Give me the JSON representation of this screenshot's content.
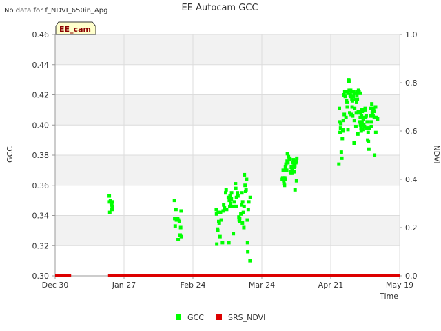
{
  "status_message": "No data for f_NDVI_650in_Apg",
  "site_badge": "EE_cam",
  "chart_data": {
    "type": "scatter",
    "title": "EE Autocam GCC",
    "xlabel": "Time",
    "ylabel_left": "GCC",
    "ylabel_right": "NDVI",
    "x_range_days": [
      0,
      140
    ],
    "ylim_left": [
      0.3,
      0.46
    ],
    "ylim_right": [
      0.0,
      1.0
    ],
    "grid": true,
    "legend_position": "bottom-center",
    "x_ticks": [
      {
        "day": 0,
        "label": "Dec 30"
      },
      {
        "day": 28,
        "label": "Jan 27"
      },
      {
        "day": 56,
        "label": "Feb 24"
      },
      {
        "day": 84,
        "label": "Mar 24"
      },
      {
        "day": 112,
        "label": "Apr 21"
      },
      {
        "day": 140,
        "label": "May 19"
      }
    ],
    "y_ticks_left": [
      {
        "value": 0.3,
        "label": "0.30"
      },
      {
        "value": 0.32,
        "label": "0.32"
      },
      {
        "value": 0.34,
        "label": "0.34"
      },
      {
        "value": 0.36,
        "label": "0.36"
      },
      {
        "value": 0.38,
        "label": "0.38"
      },
      {
        "value": 0.4,
        "label": "0.40"
      },
      {
        "value": 0.42,
        "label": "0.42"
      },
      {
        "value": 0.44,
        "label": "0.44"
      },
      {
        "value": 0.46,
        "label": "0.46"
      }
    ],
    "y_ticks_right": [
      {
        "value": 0.0,
        "label": "0.0"
      },
      {
        "value": 0.2,
        "label": "0.2"
      },
      {
        "value": 0.4,
        "label": "0.4"
      },
      {
        "value": 0.6,
        "label": "0.6"
      },
      {
        "value": 0.8,
        "label": "0.8"
      },
      {
        "value": 1.0,
        "label": "1.0"
      }
    ],
    "series": [
      {
        "name": "GCC",
        "axis": "left",
        "color": "#00ff00",
        "marker": "square",
        "points": [
          [
            22,
            0.353
          ],
          [
            22.1,
            0.349
          ],
          [
            22.2,
            0.342
          ],
          [
            22.5,
            0.35
          ],
          [
            22.8,
            0.348
          ],
          [
            23,
            0.347
          ],
          [
            23.1,
            0.344
          ],
          [
            23.2,
            0.346
          ],
          [
            23.3,
            0.349
          ],
          [
            48.5,
            0.35
          ],
          [
            48.6,
            0.338
          ],
          [
            48.8,
            0.333
          ],
          [
            49.1,
            0.344
          ],
          [
            49.3,
            0.337
          ],
          [
            49.8,
            0.338
          ],
          [
            50,
            0.324
          ],
          [
            50.1,
            0.337
          ],
          [
            50.5,
            0.336
          ],
          [
            50.8,
            0.327
          ],
          [
            51,
            0.332
          ],
          [
            51.2,
            0.343
          ],
          [
            51.3,
            0.326
          ],
          [
            65.5,
            0.344
          ],
          [
            65.6,
            0.341
          ],
          [
            65.7,
            0.321
          ],
          [
            66,
            0.331
          ],
          [
            66.1,
            0.33
          ],
          [
            66.3,
            0.342
          ],
          [
            66.5,
            0.336
          ],
          [
            66.7,
            0.335
          ],
          [
            67,
            0.326
          ],
          [
            67.2,
            0.342
          ],
          [
            67.5,
            0.337
          ],
          [
            68,
            0.322
          ],
          [
            68.3,
            0.343
          ],
          [
            68.5,
            0.347
          ],
          [
            68.8,
            0.345
          ],
          [
            69.3,
            0.355
          ],
          [
            69.5,
            0.357
          ],
          [
            69.7,
            0.344
          ],
          [
            70.4,
            0.352
          ],
          [
            70.6,
            0.322
          ],
          [
            70.8,
            0.35
          ],
          [
            71,
            0.346
          ],
          [
            71.1,
            0.353
          ],
          [
            71.3,
            0.348
          ],
          [
            71.6,
            0.351
          ],
          [
            71.7,
            0.355
          ],
          [
            72.4,
            0.328
          ],
          [
            72.6,
            0.346
          ],
          [
            72.8,
            0.349
          ],
          [
            73.3,
            0.361
          ],
          [
            73.4,
            0.358
          ],
          [
            73.5,
            0.346
          ],
          [
            73.7,
            0.352
          ],
          [
            74.1,
            0.355
          ],
          [
            74.3,
            0.353
          ],
          [
            74.7,
            0.339
          ],
          [
            74.8,
            0.337
          ],
          [
            74.9,
            0.336
          ],
          [
            75,
            0.338
          ],
          [
            75.5,
            0.341
          ],
          [
            75.8,
            0.347
          ],
          [
            75.9,
            0.355
          ],
          [
            76.1,
            0.335
          ],
          [
            76.2,
            0.349
          ],
          [
            76.5,
            0.342
          ],
          [
            76.7,
            0.332
          ],
          [
            76.8,
            0.346
          ],
          [
            76.9,
            0.367
          ],
          [
            77.2,
            0.36
          ],
          [
            77.4,
            0.356
          ],
          [
            77.6,
            0.357
          ],
          [
            77.8,
            0.364
          ],
          [
            78.1,
            0.337
          ],
          [
            78.2,
            0.322
          ],
          [
            78.3,
            0.316
          ],
          [
            78.5,
            0.344
          ],
          [
            78.7,
            0.349
          ],
          [
            79.2,
            0.31
          ],
          [
            79.3,
            0.352
          ],
          [
            92.3,
            0.364
          ],
          [
            92.5,
            0.365
          ],
          [
            92.7,
            0.37
          ],
          [
            92.9,
            0.363
          ],
          [
            93,
            0.361
          ],
          [
            93.2,
            0.36
          ],
          [
            93.3,
            0.365
          ],
          [
            93.5,
            0.364
          ],
          [
            93.6,
            0.372
          ],
          [
            93.8,
            0.374
          ],
          [
            94.1,
            0.37
          ],
          [
            94.3,
            0.376
          ],
          [
            94.4,
            0.381
          ],
          [
            94.6,
            0.375
          ],
          [
            94.8,
            0.379
          ],
          [
            95.2,
            0.377
          ],
          [
            95.4,
            0.378
          ],
          [
            95.6,
            0.369
          ],
          [
            95.8,
            0.368
          ],
          [
            96,
            0.372
          ],
          [
            96.2,
            0.368
          ],
          [
            96.3,
            0.371
          ],
          [
            96.4,
            0.37
          ],
          [
            96.6,
            0.375
          ],
          [
            96.8,
            0.377
          ],
          [
            97.1,
            0.374
          ],
          [
            97.2,
            0.372
          ],
          [
            97.3,
            0.369
          ],
          [
            97.4,
            0.373
          ],
          [
            97.5,
            0.357
          ],
          [
            97.8,
            0.375
          ],
          [
            97.9,
            0.376
          ],
          [
            98.1,
            0.363
          ],
          [
            98.2,
            0.378
          ],
          [
            115.3,
            0.374
          ],
          [
            115.5,
            0.411
          ],
          [
            115.6,
            0.402
          ],
          [
            115.8,
            0.395
          ],
          [
            116,
            0.398
          ],
          [
            116.1,
            0.401
          ],
          [
            116.3,
            0.382
          ],
          [
            116.5,
            0.378
          ],
          [
            116.7,
            0.391
          ],
          [
            116.9,
            0.396
          ],
          [
            117.1,
            0.403
          ],
          [
            117.2,
            0.397
          ],
          [
            117.3,
            0.42
          ],
          [
            117.5,
            0.407
          ],
          [
            117.7,
            0.422
          ],
          [
            117.9,
            0.419
          ],
          [
            118.2,
            0.405
          ],
          [
            118.4,
            0.416
          ],
          [
            118.6,
            0.415
          ],
          [
            118.7,
            0.412
          ],
          [
            118.8,
            0.422
          ],
          [
            119,
            0.397
          ],
          [
            119.1,
            0.421
          ],
          [
            119.3,
            0.43
          ],
          [
            119.4,
            0.429
          ],
          [
            119.5,
            0.423
          ],
          [
            119.7,
            0.408
          ],
          [
            119.9,
            0.42
          ],
          [
            120,
            0.419
          ],
          [
            120.1,
            0.423
          ],
          [
            120.3,
            0.407
          ],
          [
            120.5,
            0.422
          ],
          [
            120.6,
            0.417
          ],
          [
            120.7,
            0.412
          ],
          [
            120.8,
            0.416
          ],
          [
            120.9,
            0.406
          ],
          [
            121.1,
            0.419
          ],
          [
            121.3,
            0.422
          ],
          [
            121.5,
            0.388
          ],
          [
            121.6,
            0.403
          ],
          [
            121.7,
            0.411
          ],
          [
            121.8,
            0.421
          ],
          [
            122,
            0.417
          ],
          [
            122.2,
            0.399
          ],
          [
            122.4,
            0.408
          ],
          [
            122.5,
            0.415
          ],
          [
            122.6,
            0.42
          ],
          [
            122.7,
            0.422
          ],
          [
            122.8,
            0.417
          ],
          [
            123,
            0.394
          ],
          [
            123.2,
            0.409
          ],
          [
            123.3,
            0.423
          ],
          [
            123.4,
            0.408
          ],
          [
            123.5,
            0.422
          ],
          [
            123.7,
            0.402
          ],
          [
            123.9,
            0.421
          ],
          [
            124,
            0.405
          ],
          [
            124.1,
            0.4
          ],
          [
            124.2,
            0.408
          ],
          [
            124.3,
            0.398
          ],
          [
            124.4,
            0.396
          ],
          [
            124.5,
            0.406
          ],
          [
            124.6,
            0.41
          ],
          [
            124.7,
            0.402
          ],
          [
            124.8,
            0.409
          ],
          [
            125,
            0.397
          ],
          [
            125.2,
            0.404
          ],
          [
            125.3,
            0.41
          ],
          [
            125.4,
            0.4
          ],
          [
            125.5,
            0.405
          ],
          [
            125.7,
            0.399
          ],
          [
            125.9,
            0.41
          ],
          [
            126,
            0.411
          ],
          [
            126.2,
            0.405
          ],
          [
            126.4,
            0.406
          ],
          [
            126.6,
            0.398
          ],
          [
            126.8,
            0.402
          ],
          [
            127,
            0.39
          ],
          [
            127.2,
            0.395
          ],
          [
            127.3,
            0.389
          ],
          [
            127.5,
            0.384
          ],
          [
            127.7,
            0.398
          ],
          [
            128.2,
            0.411
          ],
          [
            128.3,
            0.406
          ],
          [
            128.4,
            0.402
          ],
          [
            128.5,
            0.399
          ],
          [
            128.7,
            0.414
          ],
          [
            128.9,
            0.408
          ],
          [
            129,
            0.41
          ],
          [
            129.2,
            0.406
          ],
          [
            129.4,
            0.411
          ],
          [
            129.6,
            0.409
          ],
          [
            129.7,
            0.405
          ],
          [
            129.8,
            0.38
          ],
          [
            130.2,
            0.412
          ],
          [
            130.3,
            0.395
          ],
          [
            130.5,
            0.405
          ],
          [
            131,
            0.404
          ]
        ]
      },
      {
        "name": "SRS_NDVI",
        "axis": "right",
        "color": "#dd0000",
        "marker": "square",
        "segments": [
          [
            0,
            6.5
          ],
          [
            21.5,
            140
          ]
        ],
        "value": 0.0
      }
    ]
  }
}
